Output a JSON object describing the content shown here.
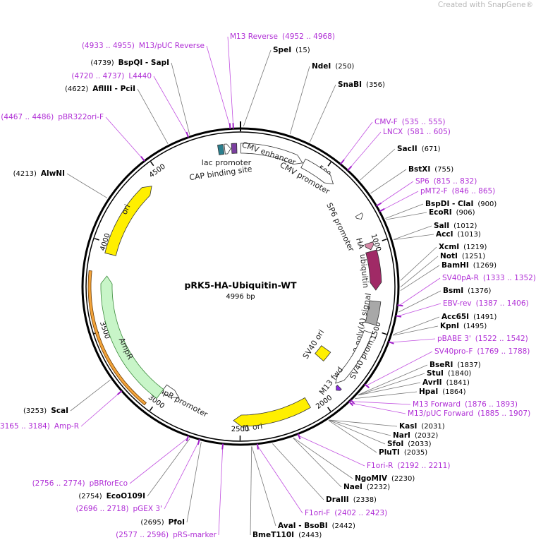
{
  "watermark": "Created with SnapGene®",
  "plasmid": {
    "name": "pRK5-HA-Ubiquitin-WT",
    "size": "4996 bp"
  },
  "ticks": [
    500,
    1000,
    1500,
    2000,
    2500,
    3000,
    3500,
    4000,
    4500
  ],
  "features": [
    {
      "label": "CMV enhancer"
    },
    {
      "label": "CMV promoter"
    },
    {
      "label": "lac promoter"
    },
    {
      "label": "CAP binding site"
    },
    {
      "label": "SP6 promoter"
    },
    {
      "label": "HA"
    },
    {
      "label": "ubiquitin"
    },
    {
      "label": "SV40 poly(A) signal"
    },
    {
      "label": "SV40 prom..."
    },
    {
      "label": "SV40 ori"
    },
    {
      "label": "M13 fwd"
    },
    {
      "label": "f1 ori"
    },
    {
      "label": "AmpR promoter"
    },
    {
      "label": "AmpR"
    },
    {
      "label": "ori"
    }
  ],
  "enzymes": [
    {
      "name": "SpeI",
      "position": "(15)"
    },
    {
      "name": "NdeI",
      "position": "(250)"
    },
    {
      "name": "SnaBI",
      "position": "(356)"
    },
    {
      "name": "SacII",
      "position": "(671)"
    },
    {
      "name": "BstXI",
      "position": "(755)"
    },
    {
      "name": "BspDI - ClaI",
      "position": "(900)"
    },
    {
      "name": "EcoRI",
      "position": "(906)"
    },
    {
      "name": "SalI",
      "position": "(1012)"
    },
    {
      "name": "AccI",
      "position": "(1013)"
    },
    {
      "name": "XcmI",
      "position": "(1219)"
    },
    {
      "name": "NotI",
      "position": "(1251)"
    },
    {
      "name": "BamHI",
      "position": "(1269)"
    },
    {
      "name": "BsmI",
      "position": "(1376)"
    },
    {
      "name": "Acc65I",
      "position": "(1491)"
    },
    {
      "name": "KpnI",
      "position": "(1495)"
    },
    {
      "name": "BseRI",
      "position": "(1837)"
    },
    {
      "name": "StuI",
      "position": "(1840)"
    },
    {
      "name": "AvrII",
      "position": "(1841)"
    },
    {
      "name": "HpaI",
      "position": "(1864)"
    },
    {
      "name": "KasI",
      "position": "(2031)"
    },
    {
      "name": "NarI",
      "position": "(2032)"
    },
    {
      "name": "SfoI",
      "position": "(2033)"
    },
    {
      "name": "PluTI",
      "position": "(2035)"
    },
    {
      "name": "NgoMIV",
      "position": "(2230)"
    },
    {
      "name": "NaeI",
      "position": "(2232)"
    },
    {
      "name": "DraIII",
      "position": "(2338)"
    },
    {
      "name": "AvaI - BsoBI",
      "position": "(2442)"
    },
    {
      "name": "BmeT110I",
      "position": "(2443)"
    },
    {
      "name": "PfoI",
      "position": "(2695)"
    },
    {
      "name": "EcoO109I",
      "position": "(2754)"
    },
    {
      "name": "ScaI",
      "position": "(3253)"
    },
    {
      "name": "AlwNI",
      "position": "(4213)"
    },
    {
      "name": "AflIII - PciI",
      "position": "(4622)"
    },
    {
      "name": "BspQI - SapI",
      "position": "(4739)"
    }
  ],
  "primers": [
    {
      "name": "M13 Reverse",
      "position": "(4952 .. 4968)"
    },
    {
      "name": "CMV-F",
      "position": "(535 .. 555)"
    },
    {
      "name": "LNCX",
      "position": "(581 .. 605)"
    },
    {
      "name": "SP6",
      "position": "(815 .. 832)"
    },
    {
      "name": "pMT2-F",
      "position": "(846 .. 865)"
    },
    {
      "name": "SV40pA-R",
      "position": "(1333 .. 1352)"
    },
    {
      "name": "EBV-rev",
      "position": "(1387 .. 1406)"
    },
    {
      "name": "pBABE 3'",
      "position": "(1522 .. 1542)"
    },
    {
      "name": "SV40pro-F",
      "position": "(1769 .. 1788)"
    },
    {
      "name": "M13 Forward",
      "position": "(1876 .. 1893)"
    },
    {
      "name": "M13/pUC Forward",
      "position": "(1885 .. 1907)"
    },
    {
      "name": "F1ori-R",
      "position": "(2192 .. 2211)"
    },
    {
      "name": "F1ori-F",
      "position": "(2402 .. 2423)"
    },
    {
      "name": "pRS-marker",
      "position": "(2577 .. 2596)"
    },
    {
      "name": "pGEX 3'",
      "position": "(2696 .. 2718)"
    },
    {
      "name": "pBRforEco",
      "position": "(2756 .. 2774)"
    },
    {
      "name": "Amp-R",
      "position": "(3165 .. 3184)"
    },
    {
      "name": "pBR322ori-F",
      "position": "(4467 .. 4486)"
    },
    {
      "name": "L4440",
      "position": "(4720 .. 4737)"
    },
    {
      "name": "M13/pUC Reverse",
      "position": "(4933 .. 4955)"
    }
  ]
}
